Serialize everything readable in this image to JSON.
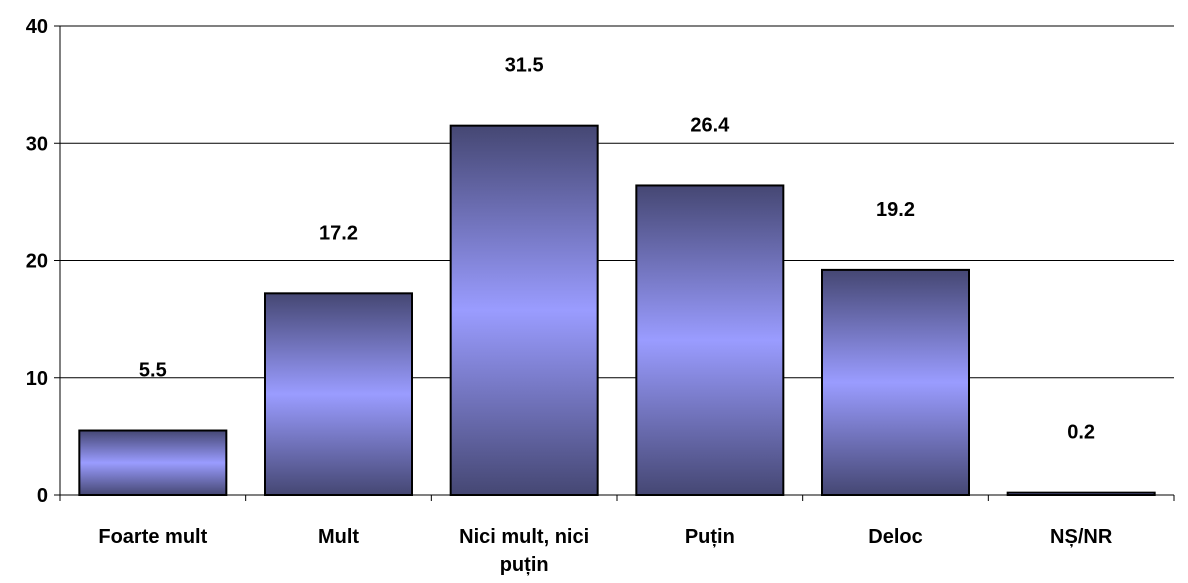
{
  "chart_data": {
    "type": "bar",
    "title": "",
    "xlabel": "",
    "ylabel": "",
    "categories": [
      "Foarte mult",
      "Mult",
      "Nici mult, nici puțin",
      "Puțin",
      "Deloc",
      "NȘ/NR"
    ],
    "category_lines": [
      [
        "Foarte mult"
      ],
      [
        "Mult"
      ],
      [
        "Nici mult, nici",
        "puțin"
      ],
      [
        "Puțin"
      ],
      [
        "Deloc"
      ],
      [
        "NȘ/NR"
      ]
    ],
    "values": [
      5.5,
      17.2,
      31.5,
      26.4,
      19.2,
      0.2
    ],
    "data_labels": [
      "5.5",
      "17.2",
      "31.5",
      "26.4",
      "19.2",
      "0.2"
    ],
    "ylim": [
      0,
      40
    ],
    "yticks": [
      0,
      10,
      20,
      30,
      40
    ],
    "grid": true,
    "legend": "none",
    "colors": {
      "bar_edge": "#454773",
      "bar_center": "#9a9cff",
      "bar_outline": "#000000",
      "grid": "#000000"
    }
  }
}
